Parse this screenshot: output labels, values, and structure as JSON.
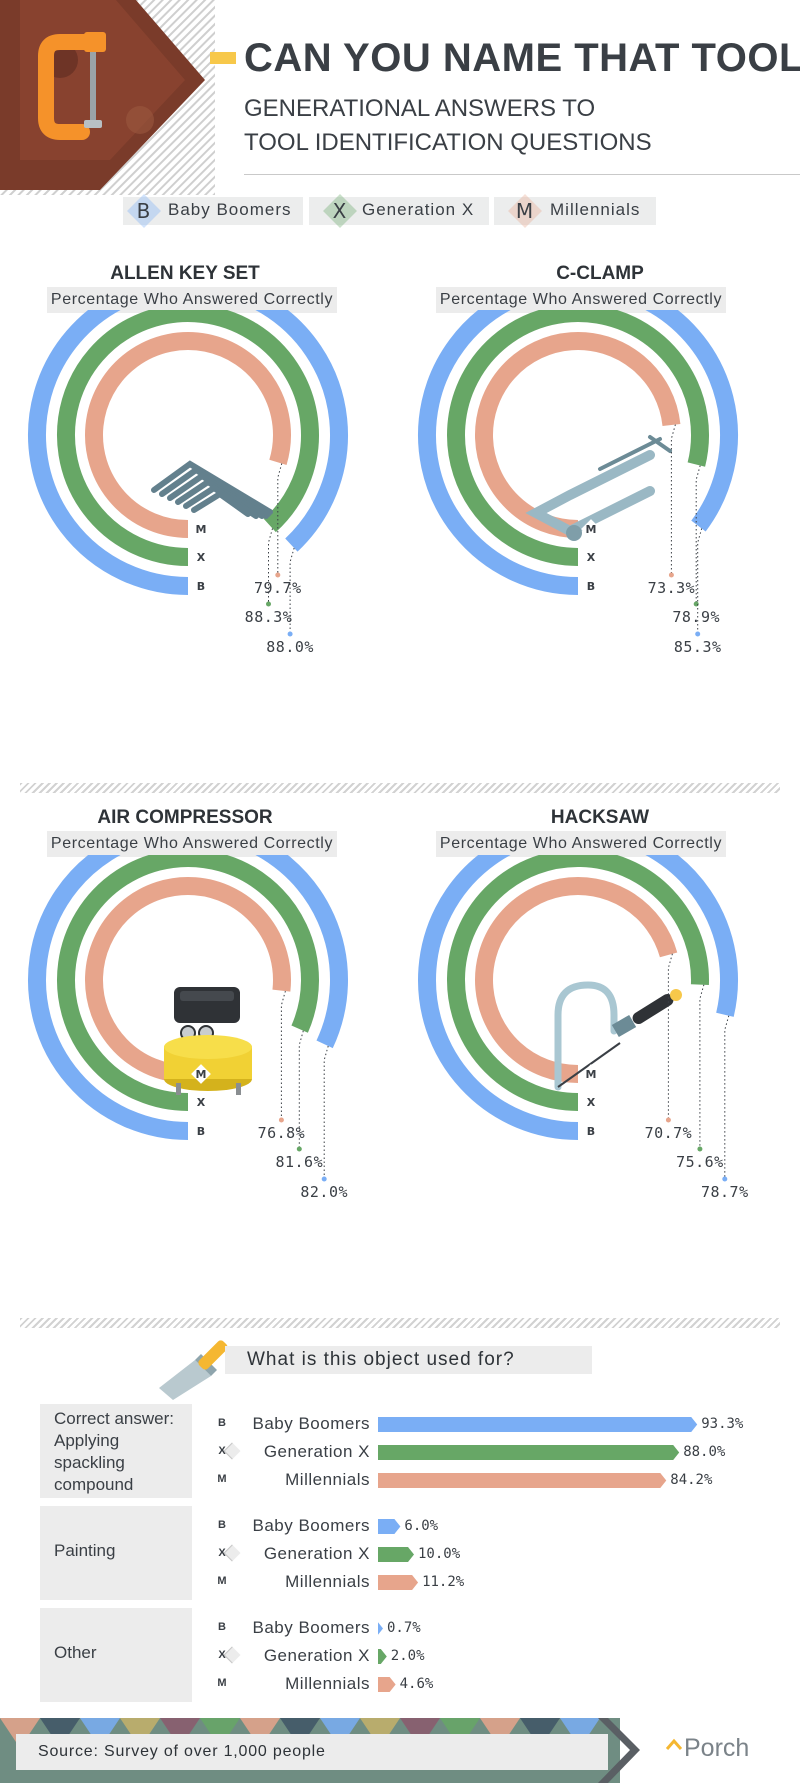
{
  "header": {
    "title": "CAN YOU NAME THAT TOOL?",
    "subtitle": "GENERATIONAL ANSWERS TO TOOL IDENTIFICATION QUESTIONS"
  },
  "legend": [
    {
      "letter": "B",
      "label": "Baby Boomers"
    },
    {
      "letter": "X",
      "label": "Generation X"
    },
    {
      "letter": "M",
      "label": "Millennials"
    }
  ],
  "colors": {
    "boomers": "#7aaef5",
    "genx": "#67a766",
    "millennials": "#e7a58c",
    "accent": "#f7c84a",
    "text": "#3a3f45"
  },
  "chart_data": [
    {
      "type": "radial-bar",
      "title": "ALLEN KEY SET",
      "subtitle": "Percentage Who Answered Correctly",
      "icon": "allen-key-set-icon",
      "series": [
        {
          "name": "M",
          "value": 79.7,
          "label": "79.7%"
        },
        {
          "name": "X",
          "value": 88.3,
          "label": "88.3%"
        },
        {
          "name": "B",
          "value": 88.0,
          "label": "88.0%"
        }
      ]
    },
    {
      "type": "radial-bar",
      "title": "C-CLAMP",
      "subtitle": "Percentage Who Answered Correctly",
      "icon": "c-clamp-icon",
      "series": [
        {
          "name": "M",
          "value": 73.3,
          "label": "73.3%"
        },
        {
          "name": "X",
          "value": 78.9,
          "label": "78.9%"
        },
        {
          "name": "B",
          "value": 85.3,
          "label": "85.3%"
        }
      ]
    },
    {
      "type": "radial-bar",
      "title": "AIR COMPRESSOR",
      "subtitle": "Percentage Who Answered Correctly",
      "icon": "air-compressor-icon",
      "series": [
        {
          "name": "M",
          "value": 76.8,
          "label": "76.8%"
        },
        {
          "name": "X",
          "value": 81.6,
          "label": "81.6%"
        },
        {
          "name": "B",
          "value": 82.0,
          "label": "82.0%"
        }
      ]
    },
    {
      "type": "radial-bar",
      "title": "HACKSAW",
      "subtitle": "Percentage Who Answered Correctly",
      "icon": "hacksaw-icon",
      "series": [
        {
          "name": "M",
          "value": 70.7,
          "label": "70.7%"
        },
        {
          "name": "X",
          "value": 75.6,
          "label": "75.6%"
        },
        {
          "name": "B",
          "value": 78.7,
          "label": "78.7%"
        }
      ]
    },
    {
      "type": "bar",
      "title": "What is this object used for?",
      "icon": "putty-knife-icon",
      "xlim": [
        0,
        100
      ],
      "groups": [
        {
          "answer": "Correct answer: Applying spackling compound",
          "rows": [
            {
              "letter": "B",
              "label": "Baby Boomers",
              "value": 93.3,
              "text": "93.3%"
            },
            {
              "letter": "X",
              "label": "Generation X",
              "value": 88.0,
              "text": "88.0%"
            },
            {
              "letter": "M",
              "label": "Millennials",
              "value": 84.2,
              "text": "84.2%"
            }
          ]
        },
        {
          "answer": "Painting",
          "rows": [
            {
              "letter": "B",
              "label": "Baby Boomers",
              "value": 6.0,
              "text": "6.0%"
            },
            {
              "letter": "X",
              "label": "Generation X",
              "value": 10.0,
              "text": "10.0%"
            },
            {
              "letter": "M",
              "label": "Millennials",
              "value": 11.2,
              "text": "11.2%"
            }
          ]
        },
        {
          "answer": "Other",
          "rows": [
            {
              "letter": "B",
              "label": "Baby Boomers",
              "value": 0.7,
              "text": "0.7%"
            },
            {
              "letter": "X",
              "label": "Generation X",
              "value": 2.0,
              "text": "2.0%"
            },
            {
              "letter": "M",
              "label": "Millennials",
              "value": 4.6,
              "text": "4.6%"
            }
          ]
        }
      ]
    }
  ],
  "footer": {
    "source": "Source: Survey of over 1,000 people",
    "brand": "Porch"
  }
}
